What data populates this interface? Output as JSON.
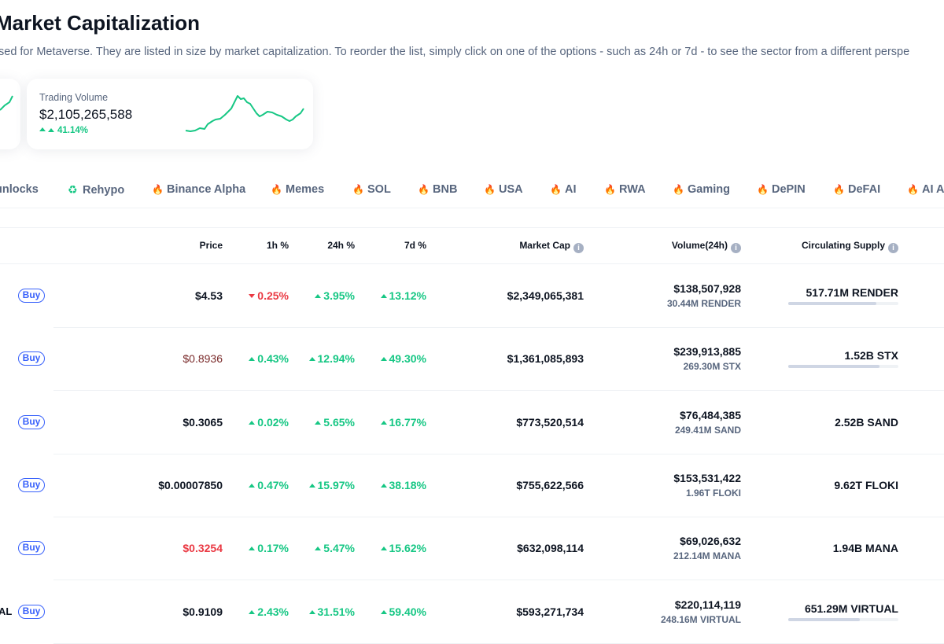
{
  "header": {
    "title": "Market Capitalization",
    "subtitle": "sed for Metaverse. They are listed in size by market capitalization. To reorder the list, simply click on one of the options - such as 24h or 7d - to see the sector from a different perspe"
  },
  "trading_volume": {
    "label": "Trading Volume",
    "value": "$2,105,265,588",
    "change": "41.14%",
    "trend_color": "#16c784"
  },
  "tags": [
    {
      "label": "unlocks",
      "icon": ""
    },
    {
      "label": "Rehypo",
      "icon": "recycle-icon"
    },
    {
      "label": "Binance Alpha",
      "icon": "fire-icon"
    },
    {
      "label": "Memes",
      "icon": "fire-icon"
    },
    {
      "label": "SOL",
      "icon": "fire-icon"
    },
    {
      "label": "BNB",
      "icon": "fire-icon"
    },
    {
      "label": "USA",
      "icon": "fire-icon"
    },
    {
      "label": "AI",
      "icon": "fire-icon"
    },
    {
      "label": "RWA",
      "icon": "fire-icon"
    },
    {
      "label": "Gaming",
      "icon": "fire-icon"
    },
    {
      "label": "DePIN",
      "icon": "fire-icon"
    },
    {
      "label": "DeFAI",
      "icon": "fire-icon"
    },
    {
      "label": "AI A",
      "icon": "fire-icon"
    }
  ],
  "table": {
    "columns": {
      "price": "Price",
      "h1": "1h %",
      "h24": "24h %",
      "d7": "7d %",
      "market_cap": "Market Cap",
      "volume": "Volume(24h)",
      "supply": "Circulating Supply"
    },
    "buy_label": "Buy",
    "rows": [
      {
        "edge_name": "",
        "price": "$4.53",
        "price_trend": "neutral",
        "h1": "0.25%",
        "h1_dir": "down",
        "h24": "3.95%",
        "h24_dir": "up",
        "d7": "13.12%",
        "d7_dir": "up",
        "market_cap": "$2,349,065,381",
        "volume_usd": "$138,507,928",
        "volume_coin": "30.44M RENDER",
        "supply": "517.71M RENDER",
        "supply_fraction": 0.8
      },
      {
        "edge_name": "",
        "price": "$0.8936",
        "price_trend": "dark-red",
        "h1": "0.43%",
        "h1_dir": "up",
        "h24": "12.94%",
        "h24_dir": "up",
        "d7": "49.30%",
        "d7_dir": "up",
        "market_cap": "$1,361,085,893",
        "volume_usd": "$239,913,885",
        "volume_coin": "269.30M STX",
        "supply": "1.52B STX",
        "supply_fraction": 0.83
      },
      {
        "edge_name": "",
        "price": "$0.3065",
        "price_trend": "neutral",
        "h1": "0.02%",
        "h1_dir": "up",
        "h24": "5.65%",
        "h24_dir": "up",
        "d7": "16.77%",
        "d7_dir": "up",
        "market_cap": "$773,520,514",
        "volume_usd": "$76,484,385",
        "volume_coin": "249.41M SAND",
        "supply": "2.52B SAND",
        "supply_fraction": null
      },
      {
        "edge_name": "",
        "price": "$0.00007850",
        "price_trend": "neutral",
        "h1": "0.47%",
        "h1_dir": "up",
        "h24": "15.97%",
        "h24_dir": "up",
        "d7": "38.18%",
        "d7_dir": "up",
        "market_cap": "$755,622,566",
        "volume_usd": "$153,531,422",
        "volume_coin": "1.96T FLOKI",
        "supply": "9.62T FLOKI",
        "supply_fraction": null
      },
      {
        "edge_name": "",
        "price": "$0.3254",
        "price_trend": "red",
        "h1": "0.17%",
        "h1_dir": "up",
        "h24": "5.47%",
        "h24_dir": "up",
        "d7": "15.62%",
        "d7_dir": "up",
        "market_cap": "$632,098,114",
        "volume_usd": "$69,026,632",
        "volume_coin": "212.14M MANA",
        "supply": "1.94B MANA",
        "supply_fraction": null
      },
      {
        "edge_name": "AL",
        "price": "$0.9109",
        "price_trend": "neutral",
        "h1": "2.43%",
        "h1_dir": "up",
        "h24": "31.51%",
        "h24_dir": "up",
        "d7": "59.40%",
        "d7_dir": "up",
        "market_cap": "$593,271,734",
        "volume_usd": "$220,114,119",
        "volume_coin": "248.16M VIRTUAL",
        "supply": "651.29M VIRTUAL",
        "supply_fraction": 0.65
      }
    ]
  },
  "colors": {
    "up": "#16c784",
    "down": "#ea3943",
    "dark_red": "#7a2a2a",
    "accent": "#3861fb"
  }
}
